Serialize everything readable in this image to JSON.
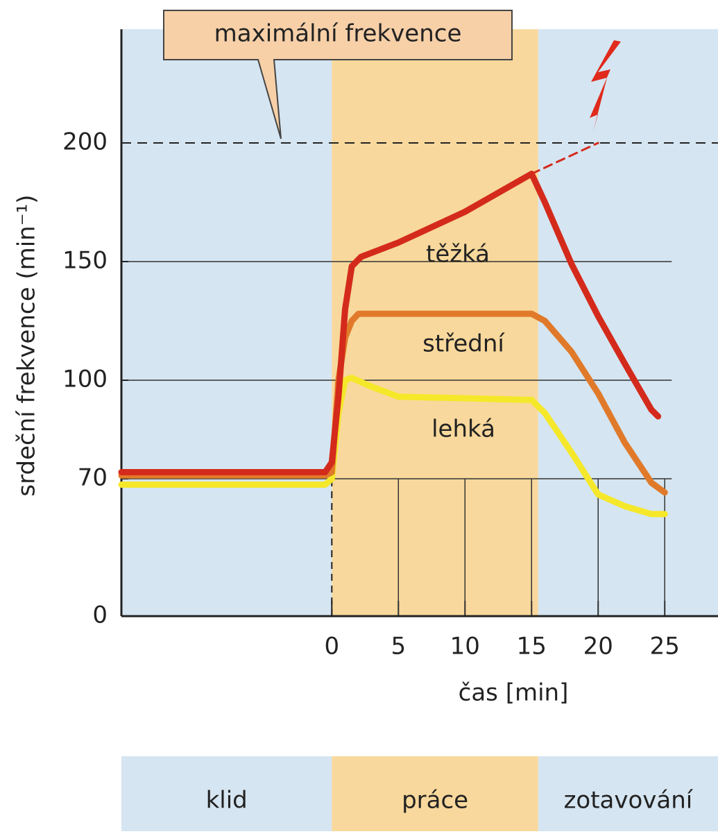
{
  "chart_data": {
    "type": "line",
    "annotation": "maximální frekvence",
    "ylabel": "srdeční frekvence (min⁻¹)",
    "xlabel": "čas [min]",
    "xlim": [
      -15.8,
      29
    ],
    "ylim": [
      0,
      245
    ],
    "xticks": [
      0,
      5,
      10,
      15,
      20,
      25
    ],
    "yticks": [
      0,
      70,
      100,
      150,
      200
    ],
    "grid": true,
    "max_line": 200,
    "series": [
      {
        "label": "těžká",
        "color": "#d42a1c",
        "x": [
          -15.8,
          -0.5,
          0,
          0.5,
          1,
          1.5,
          2.2,
          5,
          10,
          15,
          16,
          18,
          20,
          22,
          24,
          24.5
        ],
        "values": [
          72,
          72,
          75,
          95,
          130,
          148,
          152,
          158,
          171,
          187,
          175,
          149,
          127,
          107,
          91,
          89
        ]
      },
      {
        "label": "střední",
        "color": "#e07a2a",
        "x": [
          -15.8,
          -0.5,
          0,
          0.5,
          1,
          1.5,
          2,
          15,
          16,
          18,
          20,
          22,
          24,
          25
        ],
        "values": [
          71,
          71,
          72,
          100,
          118,
          125,
          128,
          128,
          125,
          112,
          96,
          81,
          68,
          63
        ]
      },
      {
        "label": "lehká",
        "color": "#f5e82a",
        "x": [
          -15.8,
          -0.5,
          0,
          0.5,
          1,
          1.5,
          3,
          5,
          15,
          16,
          18,
          20,
          22,
          24,
          25
        ],
        "values": [
          67,
          67,
          70,
          90,
          100,
          101,
          98,
          95,
          94,
          90,
          78,
          62,
          56,
          52,
          52
        ]
      }
    ],
    "extension": {
      "color": "#d42a1c",
      "x": [
        15,
        20
      ],
      "values": [
        187,
        200
      ]
    },
    "phases": [
      {
        "label": "klid",
        "color": "#d5e5f1"
      },
      {
        "label": "práce",
        "color": "#f8d89c",
        "start": 0,
        "end": 15.5
      },
      {
        "label": "zotavování",
        "color": "#d5e5f1"
      }
    ]
  }
}
